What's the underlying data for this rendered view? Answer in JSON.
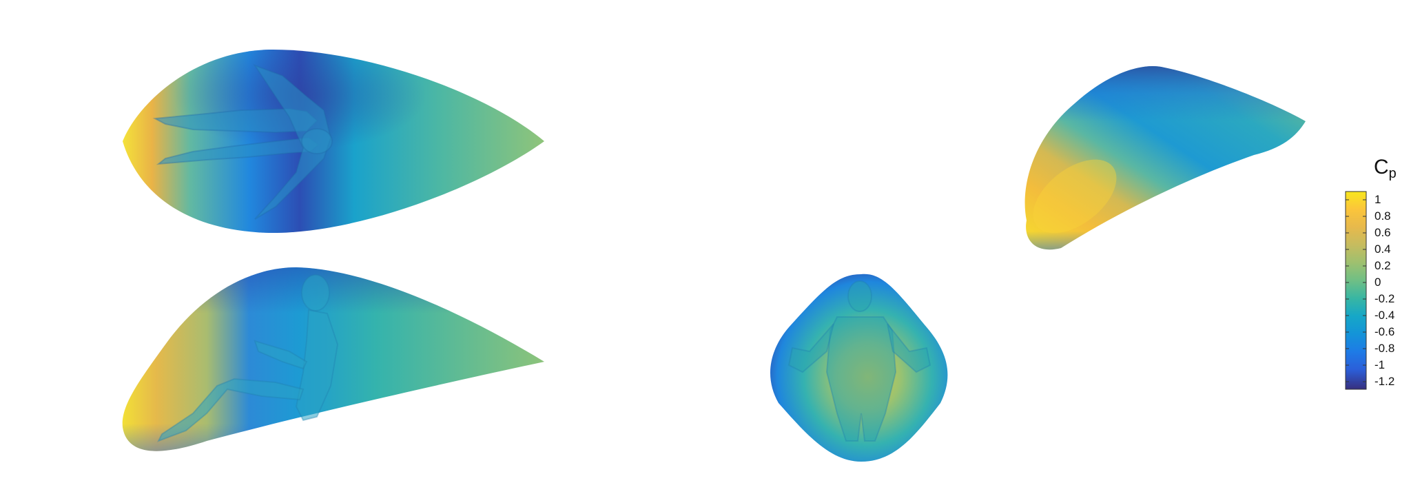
{
  "colorbar": {
    "title_main": "C",
    "title_sub": "p",
    "ticks": [
      "1",
      "0.8",
      "0.6",
      "0.4",
      "0.2",
      "0",
      "-0.2",
      "-0.4",
      "-0.6",
      "-0.8",
      "-1",
      "-1.2"
    ],
    "gradient": [
      "#f8e61e",
      "#fbc53b",
      "#e7b94c",
      "#c6bc5f",
      "#9ec06f",
      "#6fbf85",
      "#38b6a3",
      "#16a7c7",
      "#1494d8",
      "#1e7be6",
      "#2b5fd9",
      "#3a3ea6",
      "#372f7e"
    ]
  },
  "palette": {
    "yellow": "#f8e21f",
    "orange": "#f5b83c",
    "green": "#72bf87",
    "teal": "#27b0ad",
    "cyan": "#19a4c9",
    "blue": "#2279df",
    "deep_blue": "#2f3f9e"
  }
}
